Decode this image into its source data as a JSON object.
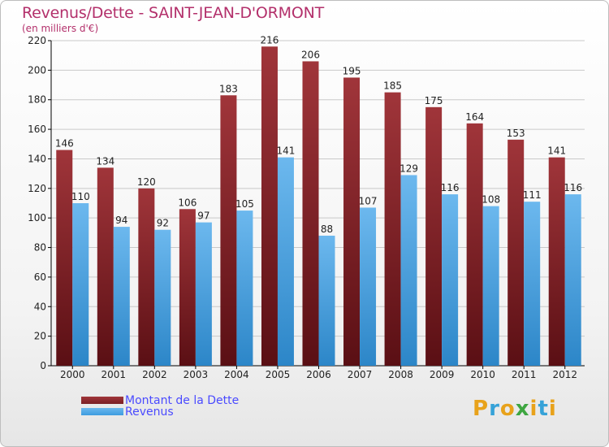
{
  "title": "Revenus/Dette - SAINT-JEAN-D'ORMONT",
  "subtitle": "(en milliers d'€)",
  "logo": {
    "text": "Proxiti",
    "letters": [
      "P",
      "r",
      "o",
      "x",
      "i",
      "t",
      "i"
    ],
    "colors": [
      "#e8a21b",
      "#36a2d8",
      "#e8a21b",
      "#3ea641",
      "#e8a21b",
      "#36a2d8",
      "#e8a21b"
    ]
  },
  "colors": {
    "debt": "#7a1f24",
    "debt_light": "#a0353a",
    "revenue": "#3d9ce0",
    "revenue_light": "#6cb8ee",
    "axis": "#000000",
    "grid": "#c9c9c9"
  },
  "chart_data": {
    "type": "bar",
    "categories": [
      "2000",
      "2001",
      "2002",
      "2003",
      "2004",
      "2005",
      "2006",
      "2007",
      "2008",
      "2009",
      "2010",
      "2011",
      "2012"
    ],
    "series": [
      {
        "name": "Montant de la Dette",
        "values": [
          146,
          134,
          120,
          106,
          183,
          216,
          206,
          195,
          185,
          175,
          164,
          153,
          141
        ]
      },
      {
        "name": "Revenus",
        "values": [
          110,
          94,
          92,
          97,
          105,
          141,
          88,
          107,
          129,
          116,
          108,
          111,
          116
        ]
      }
    ],
    "ylim": [
      0,
      220
    ],
    "yticks": [
      0,
      20,
      40,
      60,
      80,
      100,
      120,
      140,
      160,
      180,
      200,
      220
    ],
    "xlabel": "",
    "ylabel": "",
    "grid": true,
    "legend": "bottom-left"
  }
}
